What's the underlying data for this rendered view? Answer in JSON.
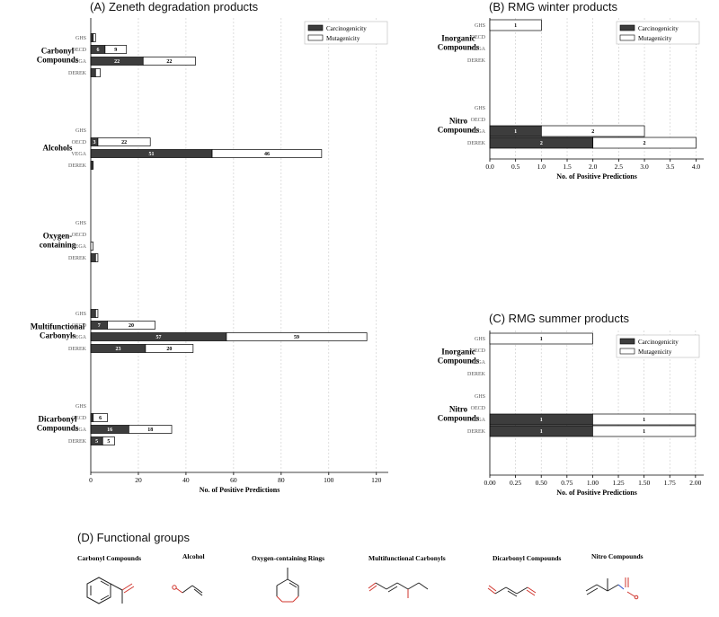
{
  "colors": {
    "carcinogenicity": "#3d3d3d",
    "mutagenicity": "#ffffff",
    "grid": "#c8c8c8",
    "oxygen": "#d0342c",
    "nitrogen": "#2b4fc9"
  },
  "chart_data": [
    {
      "id": "A",
      "type": "bar",
      "orientation": "horizontal",
      "stacked": true,
      "title": "(A) Zeneth degradation products",
      "xlabel": "No. of Positive Predictions",
      "xlim": [
        0,
        125
      ],
      "xticks": [
        "0",
        "20",
        "40",
        "60",
        "80",
        "100",
        "120"
      ],
      "xtick_values": [
        0,
        20,
        40,
        60,
        80,
        100,
        120
      ],
      "legend": [
        "Carcinogenicity",
        "Mutagenicity"
      ],
      "legend_position": "top-right",
      "groups": [
        {
          "name": "Carbonyl Compounds",
          "lines": [
            "Carbonyl",
            "Compounds"
          ],
          "rows": [
            {
              "label": "GHS",
              "carc": 1,
              "mut": 1
            },
            {
              "label": "OECD",
              "carc": 6,
              "mut": 9
            },
            {
              "label": "VEGA",
              "carc": 22,
              "mut": 22
            },
            {
              "label": "DEREK",
              "carc": 2,
              "mut": 2
            }
          ]
        },
        {
          "name": "Alcohols",
          "lines": [
            "Alcohols"
          ],
          "rows": [
            {
              "label": "GHS",
              "carc": 0,
              "mut": 0
            },
            {
              "label": "OECD",
              "carc": 3,
              "mut": 22
            },
            {
              "label": "VEGA",
              "carc": 51,
              "mut": 46
            },
            {
              "label": "DEREK",
              "carc": 1,
              "mut": 0
            }
          ]
        },
        {
          "name": "Oxygen-containing",
          "lines": [
            "Oxygen-",
            "containing"
          ],
          "rows": [
            {
              "label": "GHS",
              "carc": 0,
              "mut": 0
            },
            {
              "label": "OECD",
              "carc": 0,
              "mut": 0
            },
            {
              "label": "VEGA",
              "carc": 0,
              "mut": 1
            },
            {
              "label": "DEREK",
              "carc": 2,
              "mut": 1
            }
          ]
        },
        {
          "name": "Multifunctional Carbonyls",
          "lines": [
            "Multifunctional",
            "Carbonyls"
          ],
          "rows": [
            {
              "label": "GHS",
              "carc": 2,
              "mut": 1
            },
            {
              "label": "OECD",
              "carc": 7,
              "mut": 20
            },
            {
              "label": "VEGA",
              "carc": 57,
              "mut": 59
            },
            {
              "label": "DEREK",
              "carc": 23,
              "mut": 20
            }
          ]
        },
        {
          "name": "Dicarbonyl Compounds",
          "lines": [
            "Dicarbonyl",
            "Compounds"
          ],
          "rows": [
            {
              "label": "GHS",
              "carc": 0,
              "mut": 0
            },
            {
              "label": "OECD",
              "carc": 1,
              "mut": 6
            },
            {
              "label": "VEGA",
              "carc": 16,
              "mut": 18
            },
            {
              "label": "DEREK",
              "carc": 5,
              "mut": 5
            }
          ]
        }
      ]
    },
    {
      "id": "B",
      "type": "bar",
      "orientation": "horizontal",
      "stacked": true,
      "title": "(B) RMG winter products",
      "xlabel": "No. of Positive Predictions",
      "xlim": [
        0,
        4.15
      ],
      "xticks": [
        "0.0",
        "0.5",
        "1.0",
        "1.5",
        "2.0",
        "2.5",
        "3.0",
        "3.5",
        "4.0"
      ],
      "xtick_values": [
        0,
        0.5,
        1,
        1.5,
        2,
        2.5,
        3,
        3.5,
        4
      ],
      "legend": [
        "Carcinogenicity",
        "Mutagenicity"
      ],
      "legend_position": "top-right",
      "groups": [
        {
          "name": "Inorganic Compounds",
          "lines": [
            "Inorganic",
            "Compounds"
          ],
          "rows": [
            {
              "label": "GHS",
              "carc": 0,
              "mut": 1
            },
            {
              "label": "OECD",
              "carc": 0,
              "mut": 0
            },
            {
              "label": "VEGA",
              "carc": 0,
              "mut": 0
            },
            {
              "label": "DEREK",
              "carc": 0,
              "mut": 0
            }
          ]
        },
        {
          "name": "Nitro Compounds",
          "lines": [
            "Nitro",
            "Compounds"
          ],
          "rows": [
            {
              "label": "GHS",
              "carc": 0,
              "mut": 0
            },
            {
              "label": "OECD",
              "carc": 0,
              "mut": 0
            },
            {
              "label": "VEGA",
              "carc": 1,
              "mut": 2
            },
            {
              "label": "DEREK",
              "carc": 2,
              "mut": 2
            }
          ]
        }
      ]
    },
    {
      "id": "C",
      "type": "bar",
      "orientation": "horizontal",
      "stacked": true,
      "title": "(C) RMG summer products",
      "xlabel": "No. of Positive Predictions",
      "xlim": [
        0,
        2.08
      ],
      "xticks": [
        "0.00",
        "0.25",
        "0.50",
        "0.75",
        "1.00",
        "1.25",
        "1.50",
        "1.75",
        "2.00"
      ],
      "xtick_values": [
        0,
        0.25,
        0.5,
        0.75,
        1,
        1.25,
        1.5,
        1.75,
        2
      ],
      "legend": [
        "Carcinogenicity",
        "Mutagenicity"
      ],
      "legend_position": "top-right",
      "groups": [
        {
          "name": "Inorganic Compounds",
          "lines": [
            "Inorganic",
            "Compounds"
          ],
          "rows": [
            {
              "label": "GHS",
              "carc": 0,
              "mut": 1
            },
            {
              "label": "OECD",
              "carc": 0,
              "mut": 0
            },
            {
              "label": "VEGA",
              "carc": 0,
              "mut": 0
            },
            {
              "label": "DEREK",
              "carc": 0,
              "mut": 0
            }
          ]
        },
        {
          "name": "Nitro Compounds",
          "lines": [
            "Nitro",
            "Compounds"
          ],
          "rows": [
            {
              "label": "GHS",
              "carc": 0,
              "mut": 0
            },
            {
              "label": "OECD",
              "carc": 0,
              "mut": 0
            },
            {
              "label": "VEGA",
              "carc": 1,
              "mut": 1
            },
            {
              "label": "DEREK",
              "carc": 1,
              "mut": 1
            }
          ]
        }
      ]
    }
  ],
  "functional_groups": {
    "title": "(D) Functional groups",
    "items": [
      {
        "label": "Carbonyl Compounds",
        "structure": "acetophenone"
      },
      {
        "label": "Alcohol",
        "structure": "allyl-alcohol"
      },
      {
        "label": "Oxygen-containing Rings",
        "structure": "dioxine-ring"
      },
      {
        "label": "Multifunctional Carbonyls",
        "structure": "hydroxy-dienal"
      },
      {
        "label": "Dicarbonyl Compounds",
        "structure": "butenedial"
      },
      {
        "label": "Nitro Compounds",
        "structure": "nitro-alkene"
      }
    ]
  }
}
